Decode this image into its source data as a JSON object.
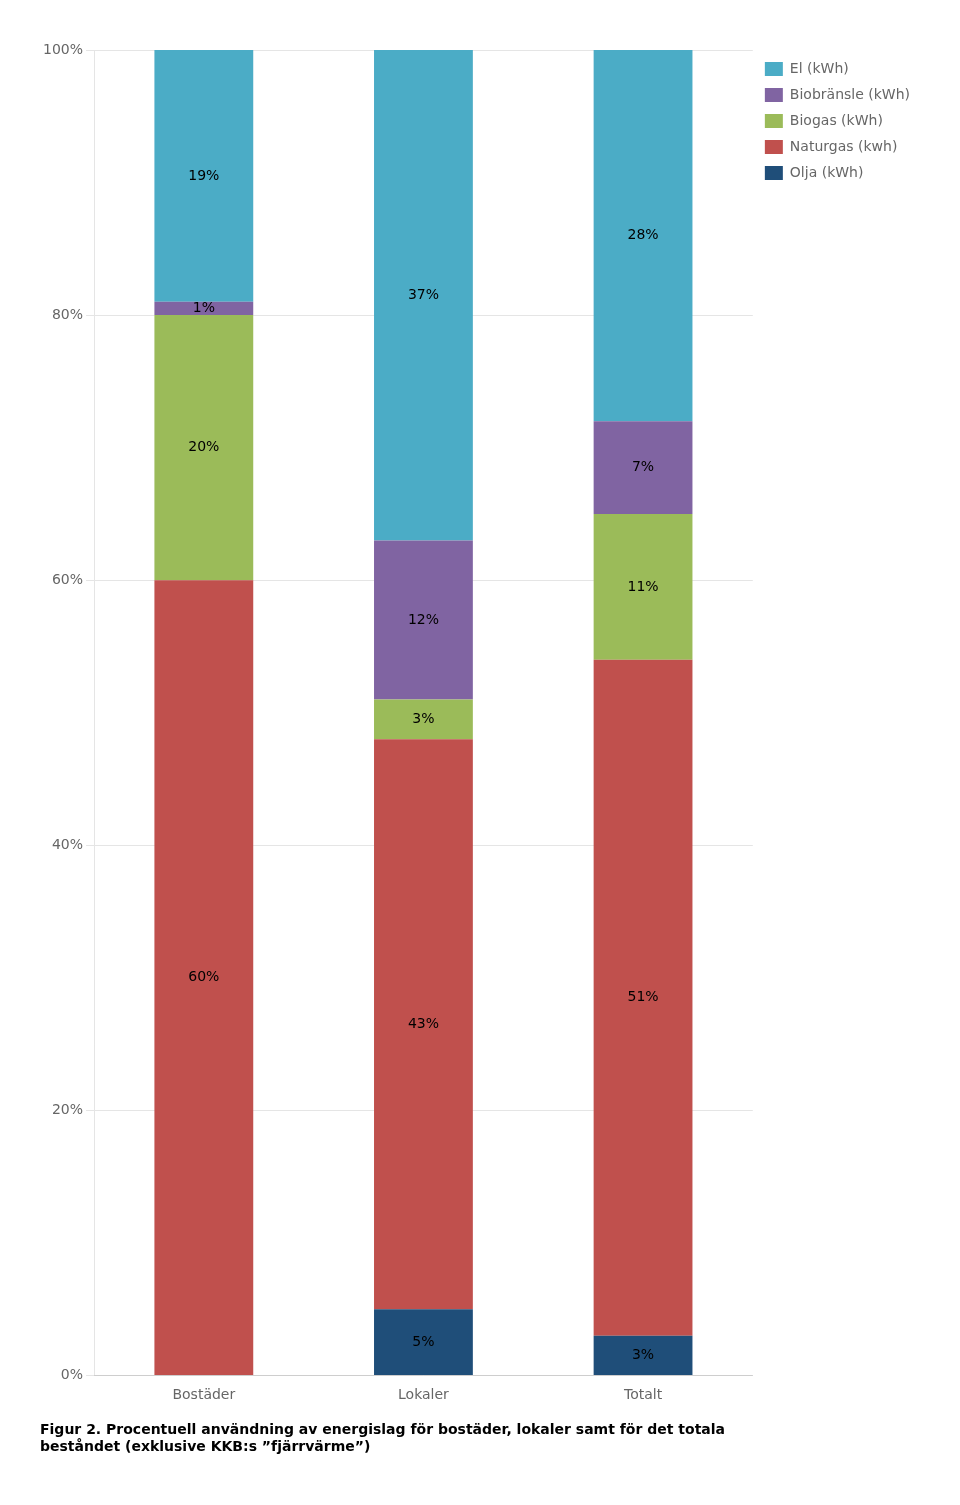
{
  "chart_data": {
    "type": "bar",
    "stacked": true,
    "title": [
      "Figur 2. Procentuell användning av energislag för bostäder, lokaler samt för det totala",
      "beståndet (exklusive KKB:s ”fjärrvärme”)"
    ],
    "categories": [
      "Bostäder",
      "Lokaler",
      "Totalt"
    ],
    "series": [
      {
        "name": "Olja (kWh)",
        "color": "#1F4E79",
        "values": [
          0,
          5,
          3
        ],
        "value_labels": [
          null,
          "5%",
          "3%"
        ]
      },
      {
        "name": "Naturgas (kwh)",
        "color": "#C0504D",
        "values": [
          60,
          43,
          51
        ],
        "value_labels": [
          "60%",
          "43%",
          "51%"
        ]
      },
      {
        "name": "Biogas (kWh)",
        "color": "#9BBB59",
        "values": [
          20,
          3,
          11
        ],
        "value_labels": [
          "20%",
          "3%",
          "11%"
        ]
      },
      {
        "name": "Biobränsle (kWh)",
        "color": "#8064A2",
        "values": [
          1,
          12,
          7
        ],
        "value_labels": [
          "1%",
          "12%",
          "7%"
        ]
      },
      {
        "name": "El (kWh)",
        "color": "#4BACC6",
        "values": [
          19,
          37,
          28
        ],
        "value_labels": [
          "19%",
          "37%",
          "28%"
        ]
      }
    ],
    "ylim": [
      0,
      100
    ],
    "yticks": [
      {
        "value": 0,
        "label": "0%"
      },
      {
        "value": 20,
        "label": "20%"
      },
      {
        "value": 40,
        "label": "40%"
      },
      {
        "value": 60,
        "label": "60%"
      },
      {
        "value": 80,
        "label": "80%"
      },
      {
        "value": 100,
        "label": "100%"
      }
    ],
    "grid": true,
    "legend": "right",
    "data_labels": true
  }
}
